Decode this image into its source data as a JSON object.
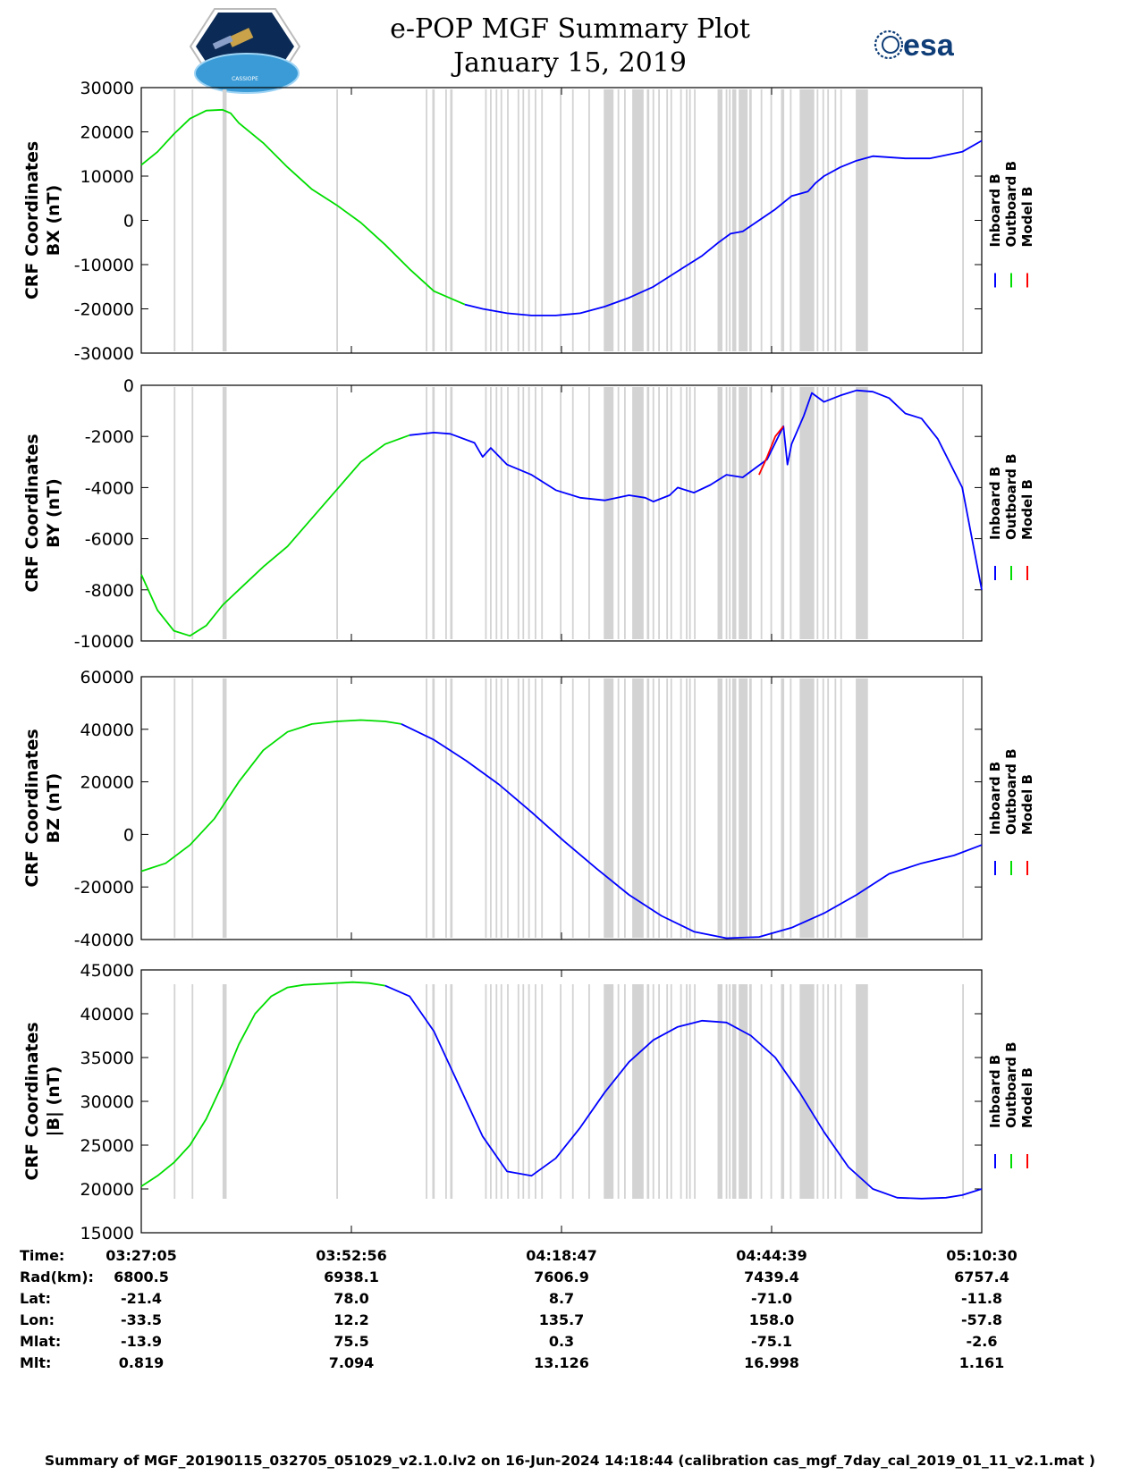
{
  "header": {
    "title": "e-POP MGF Summary Plot",
    "date": "January 15, 2019",
    "esa_logo_text": "esa",
    "mission_logo_text": "CASSIOPE"
  },
  "colors": {
    "inboard": "#0000ff",
    "outboard": "#00dd00",
    "model": "#ff0000",
    "gap_shade": "#d3d3d3"
  },
  "legend": [
    "Inboard B",
    "Outboard B",
    "Model B"
  ],
  "x_ticks": [
    "03:27:05",
    "03:52:56",
    "04:18:47",
    "04:44:39",
    "05:10:30"
  ],
  "data_gaps_minutes": [
    [
      4.0,
      4.2
    ],
    [
      6.2,
      6.4
    ],
    [
      10.0,
      10.5
    ],
    [
      24.0,
      24.2
    ],
    [
      35.0,
      35.2
    ],
    [
      35.8,
      36.1
    ],
    [
      37.4,
      37.6
    ],
    [
      38.0,
      38.3
    ],
    [
      42.3,
      42.5
    ],
    [
      42.9,
      43.1
    ],
    [
      43.6,
      43.8
    ],
    [
      44.2,
      44.4
    ],
    [
      45.0,
      45.2
    ],
    [
      46.3,
      46.5
    ],
    [
      46.9,
      47.1
    ],
    [
      47.6,
      47.8
    ],
    [
      48.4,
      48.6
    ],
    [
      49.2,
      49.4
    ],
    [
      51.5,
      51.7
    ],
    [
      53.0,
      53.2
    ],
    [
      55.0,
      55.2
    ],
    [
      56.9,
      58.1
    ],
    [
      58.6,
      58.8
    ],
    [
      59.4,
      59.6
    ],
    [
      60.4,
      61.8
    ],
    [
      62.2,
      62.5
    ],
    [
      62.9,
      63.1
    ],
    [
      63.6,
      63.8
    ],
    [
      64.6,
      64.8
    ],
    [
      65.1,
      65.3
    ],
    [
      66.3,
      66.5
    ],
    [
      67.0,
      67.2
    ],
    [
      67.4,
      67.6
    ],
    [
      68.0,
      68.2
    ],
    [
      70.9,
      71.5
    ],
    [
      71.9,
      72.1
    ],
    [
      72.3,
      72.5
    ],
    [
      72.7,
      73.2
    ],
    [
      73.5,
      74.6
    ],
    [
      74.8,
      75.1
    ],
    [
      76.2,
      76.4
    ],
    [
      77.4,
      77.6
    ],
    [
      78.7,
      79.1
    ],
    [
      79.8,
      80.0
    ],
    [
      81.0,
      82.8
    ],
    [
      83.1,
      83.3
    ],
    [
      83.8,
      84.0
    ],
    [
      84.4,
      84.6
    ],
    [
      85.3,
      85.5
    ],
    [
      86.0,
      86.2
    ],
    [
      87.9,
      89.4
    ],
    [
      101.0,
      101.2
    ]
  ],
  "chart_data": [
    {
      "type": "line",
      "ylabel_line1": "CRF Coordinates",
      "ylabel_line2": "BX (nT)",
      "ylim": [
        -30000,
        30000
      ],
      "yticks": [
        "30000",
        "20000",
        "10000",
        "0",
        "-10000",
        "-20000",
        "-30000"
      ],
      "series": [
        {
          "name": "Outboard B",
          "x_minutes": [
            0,
            2,
            4,
            6,
            8,
            10,
            11,
            12,
            15,
            18,
            21,
            24,
            27,
            30,
            33,
            36,
            39.8
          ],
          "values": [
            12500,
            15500,
            19500,
            23000,
            24800,
            25000,
            24200,
            22000,
            17500,
            12000,
            7000,
            3500,
            -500,
            -5500,
            -11000,
            -16000,
            -19000
          ]
        },
        {
          "name": "Inboard B",
          "x_minutes": [
            39.8,
            42,
            45,
            48,
            51,
            54,
            57,
            60,
            63,
            66,
            69,
            71,
            72.5,
            74,
            76,
            78,
            80,
            82,
            83,
            84,
            86,
            88,
            90,
            94,
            97,
            101,
            103.4
          ],
          "values": [
            -19000,
            -20000,
            -21000,
            -21500,
            -21500,
            -21000,
            -19500,
            -17500,
            -15000,
            -11500,
            -8000,
            -5000,
            -3000,
            -2500,
            0,
            2500,
            5500,
            6500,
            8500,
            10000,
            12000,
            13500,
            14500,
            14000,
            14000,
            15500,
            18000
          ]
        },
        {
          "name": "Model B",
          "x_minutes": [],
          "values": []
        }
      ]
    },
    {
      "type": "line",
      "ylabel_line1": "CRF Coordinates",
      "ylabel_line2": "BY (nT)",
      "ylim": [
        -10000,
        0
      ],
      "yticks": [
        "0",
        "-2000",
        "-4000",
        "-6000",
        "-8000",
        "-10000"
      ],
      "series": [
        {
          "name": "Outboard B",
          "x_minutes": [
            0,
            2,
            4,
            6,
            8,
            10,
            12,
            15,
            18,
            21,
            24,
            27,
            30,
            33
          ],
          "values": [
            -7400,
            -8800,
            -9600,
            -9800,
            -9400,
            -8600,
            -8000,
            -7100,
            -6300,
            -5200,
            -4100,
            -3000,
            -2300,
            -1950
          ]
        },
        {
          "name": "Inboard B",
          "x_minutes": [
            33,
            36,
            38,
            41,
            42,
            43,
            45,
            48,
            51,
            54,
            57,
            60,
            62,
            63,
            65,
            66,
            68,
            70,
            72,
            74,
            77,
            79,
            79.5,
            80,
            81.5,
            82.5,
            84,
            86,
            88,
            90,
            92,
            94,
            96,
            98,
            101,
            103.4
          ],
          "values": [
            -1950,
            -1850,
            -1900,
            -2250,
            -2800,
            -2450,
            -3100,
            -3500,
            -4100,
            -4400,
            -4500,
            -4300,
            -4400,
            -4550,
            -4300,
            -4000,
            -4200,
            -3900,
            -3500,
            -3600,
            -2900,
            -1600,
            -3100,
            -2300,
            -1200,
            -300,
            -650,
            -400,
            -200,
            -250,
            -500,
            -1100,
            -1300,
            -2100,
            -4000,
            -8000
          ]
        },
        {
          "name": "Model B",
          "x_minutes": [
            76,
            77,
            78,
            79
          ],
          "values": [
            -3500,
            -2800,
            -2000,
            -1600
          ]
        }
      ]
    },
    {
      "type": "line",
      "ylabel_line1": "CRF Coordinates",
      "ylabel_line2": "BZ (nT)",
      "ylim": [
        -40000,
        60000
      ],
      "yticks": [
        "60000",
        "40000",
        "20000",
        "0",
        "-20000",
        "-40000"
      ],
      "series": [
        {
          "name": "Outboard B",
          "x_minutes": [
            0,
            3,
            6,
            9,
            12,
            15,
            18,
            21,
            24,
            27,
            30,
            32
          ],
          "values": [
            -14000,
            -11000,
            -4000,
            6000,
            20000,
            32000,
            39000,
            42000,
            43000,
            43500,
            43000,
            42000
          ]
        },
        {
          "name": "Inboard B",
          "x_minutes": [
            32,
            36,
            40,
            44,
            48,
            52,
            56,
            60,
            64,
            68,
            72,
            76,
            80,
            84,
            88,
            92,
            96,
            100,
            103.4
          ],
          "values": [
            42000,
            36000,
            28000,
            19000,
            8500,
            -2500,
            -13000,
            -23000,
            -31000,
            -37000,
            -39500,
            -39000,
            -35500,
            -30000,
            -23000,
            -15000,
            -11000,
            -8000,
            -4000
          ]
        },
        {
          "name": "Model B",
          "x_minutes": [],
          "values": []
        }
      ]
    },
    {
      "type": "line",
      "ylabel_line1": "CRF Coordinates",
      "ylabel_line2": "|B| (nT)",
      "ylim": [
        15000,
        45000
      ],
      "yticks": [
        "45000",
        "40000",
        "35000",
        "30000",
        "25000",
        "20000",
        "15000"
      ],
      "series": [
        {
          "name": "Outboard B",
          "x_minutes": [
            0,
            2,
            4,
            6,
            8,
            10,
            12,
            14,
            16,
            18,
            20,
            22,
            24,
            26,
            28,
            30
          ],
          "values": [
            20300,
            21500,
            23000,
            25000,
            28000,
            32000,
            36500,
            40000,
            42000,
            43000,
            43300,
            43400,
            43500,
            43600,
            43500,
            43200
          ]
        },
        {
          "name": "Inboard B",
          "x_minutes": [
            30,
            33,
            36,
            39,
            42,
            45,
            48,
            51,
            54,
            57,
            60,
            63,
            66,
            69,
            72,
            75,
            78,
            81,
            84,
            87,
            90,
            93,
            96,
            99,
            101,
            103.4
          ],
          "values": [
            43200,
            42000,
            38000,
            32000,
            26000,
            22000,
            21500,
            23500,
            27000,
            31000,
            34500,
            37000,
            38500,
            39200,
            39000,
            37500,
            35000,
            31000,
            26500,
            22500,
            20000,
            19000,
            18900,
            19000,
            19300,
            20000
          ]
        },
        {
          "name": "Model B",
          "x_minutes": [],
          "values": []
        }
      ]
    }
  ],
  "info_table": {
    "labels": [
      "Time:",
      "Rad(km):",
      "Lat:",
      "Lon:",
      "Mlat:",
      "Mlt:"
    ],
    "columns": [
      [
        "03:27:05",
        "6800.5",
        "-21.4",
        "-33.5",
        "-13.9",
        "0.819"
      ],
      [
        "03:52:56",
        "6938.1",
        "78.0",
        "12.2",
        "75.5",
        "7.094"
      ],
      [
        "04:18:47",
        "7606.9",
        "8.7",
        "135.7",
        "0.3",
        "13.126"
      ],
      [
        "04:44:39",
        "7439.4",
        "-71.0",
        "158.0",
        "-75.1",
        "16.998"
      ],
      [
        "05:10:30",
        "6757.4",
        "-11.8",
        "-57.8",
        "-2.6",
        "1.161"
      ]
    ]
  },
  "footer": "Summary of MGF_20190115_032705_051029_v2.1.0.lv2 on 16-Jun-2024 14:18:44 (calibration cas_mgf_7day_cal_2019_01_11_v2.1.mat )"
}
